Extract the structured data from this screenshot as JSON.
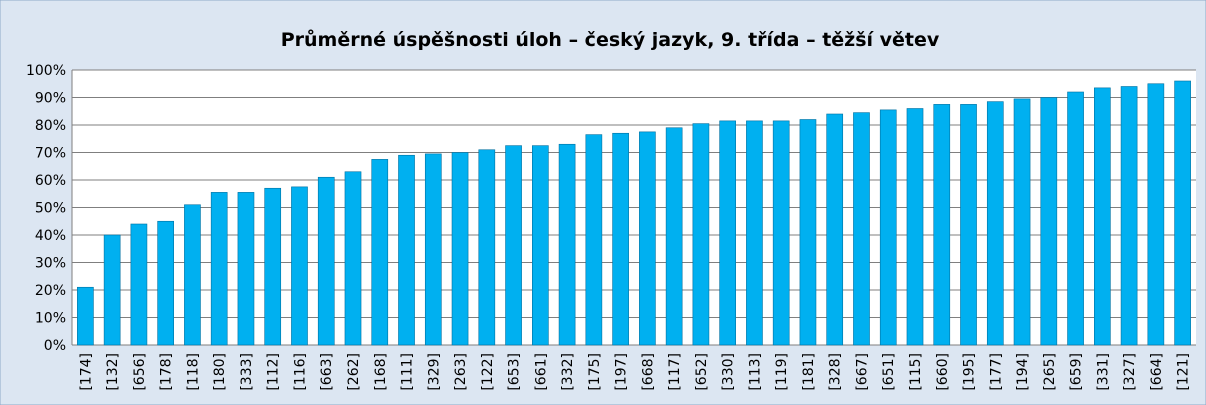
{
  "chart_data": {
    "type": "bar",
    "title": "Průměrné úspěšnosti úloh – český jazyk, 9. třída – těžší větev",
    "categories": [
      "[174]",
      "[132]",
      "[656]",
      "[178]",
      "[118]",
      "[180]",
      "[333]",
      "[112]",
      "[116]",
      "[663]",
      "[262]",
      "[168]",
      "[111]",
      "[329]",
      "[263]",
      "[122]",
      "[653]",
      "[661]",
      "[332]",
      "[175]",
      "[197]",
      "[668]",
      "[117]",
      "[652]",
      "[330]",
      "[113]",
      "[119]",
      "[181]",
      "[328]",
      "[667]",
      "[651]",
      "[115]",
      "[660]",
      "[195]",
      "[177]",
      "[194]",
      "[265]",
      "[659]",
      "[331]",
      "[327]",
      "[664]",
      "[121]"
    ],
    "values": [
      21,
      40,
      44,
      45,
      51,
      55.5,
      55.5,
      57,
      57.5,
      61,
      63,
      67.5,
      69,
      69.5,
      70,
      71,
      72.5,
      72.5,
      73,
      76.5,
      77,
      77.5,
      79,
      80.5,
      81.5,
      81.5,
      81.5,
      82,
      84,
      84.5,
      85.5,
      86,
      87.5,
      87.5,
      88.5,
      89.5,
      90,
      92,
      93.5,
      94,
      95,
      96
    ],
    "color": "#00b0f0",
    "ylim": [
      0,
      100
    ],
    "yticks": [
      {
        "value": 0,
        "label": "0%"
      },
      {
        "value": 10,
        "label": "10%"
      },
      {
        "value": 20,
        "label": "20%"
      },
      {
        "value": 30,
        "label": "30%"
      },
      {
        "value": 40,
        "label": "40%"
      },
      {
        "value": 50,
        "label": "50%"
      },
      {
        "value": 60,
        "label": "60%"
      },
      {
        "value": 70,
        "label": "70%"
      },
      {
        "value": 80,
        "label": "80%"
      },
      {
        "value": 90,
        "label": "90%"
      },
      {
        "value": 100,
        "label": "100%"
      }
    ],
    "grid": true
  }
}
